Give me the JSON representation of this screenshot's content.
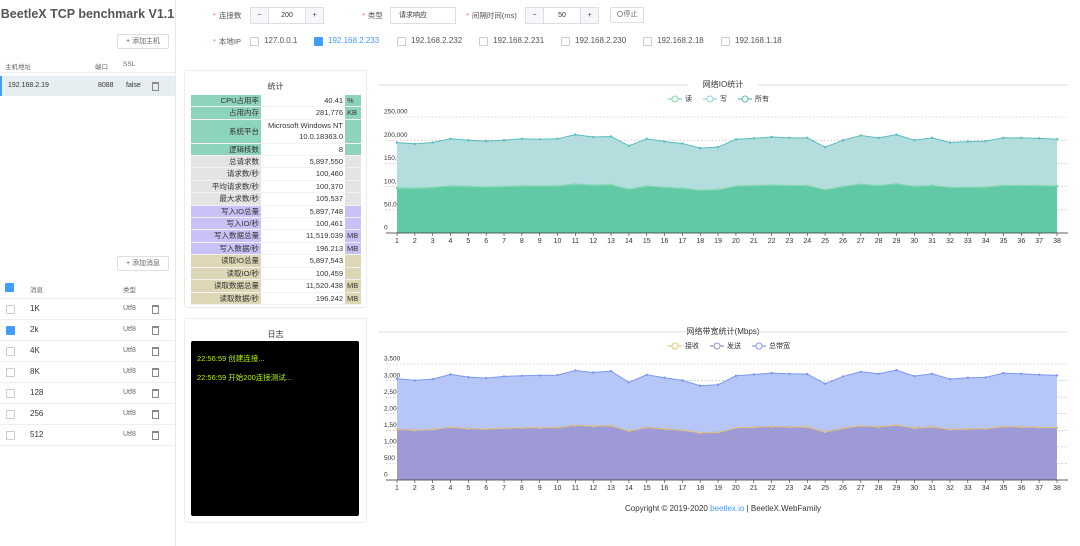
{
  "sidebar": {
    "title": "BeetleX TCP benchmark V1.1",
    "add_host": "+ 添加主机",
    "host_headers": [
      "主机地址",
      "端口",
      "SSL"
    ],
    "hosts": [
      [
        "192.168.2.19",
        "8088",
        "false"
      ]
    ],
    "add_message": "+ 添加消息",
    "message_headers": [
      "消息",
      "类型"
    ],
    "messages": [
      {
        "name": "1K",
        "type": "Utf8",
        "checked": false
      },
      {
        "name": "2k",
        "type": "Utf8",
        "checked": true
      },
      {
        "name": "4K",
        "type": "Utf8",
        "checked": false
      },
      {
        "name": "8K",
        "type": "Utf8",
        "checked": false
      },
      {
        "name": "128",
        "type": "Utf8",
        "checked": false
      },
      {
        "name": "256",
        "type": "Utf8",
        "checked": false
      },
      {
        "name": "512",
        "type": "Utf8",
        "checked": false
      }
    ]
  },
  "form": {
    "connections_label": "连接数",
    "connections": "200",
    "type_label": "类型",
    "type": "请求响应",
    "interval_label": "间隔时间(ms)",
    "interval": "50",
    "stop": "停止",
    "minus": "−",
    "plus": "+",
    "ip_label": "本地IP",
    "ips": [
      {
        "ip": "127.0.0.1",
        "checked": false
      },
      {
        "ip": "192.168.2.233",
        "checked": true
      },
      {
        "ip": "192.168.2.232",
        "checked": false
      },
      {
        "ip": "192.168.2.231",
        "checked": false
      },
      {
        "ip": "192.168.2.230",
        "checked": false
      },
      {
        "ip": "192.168.2.18",
        "checked": false
      },
      {
        "ip": "192.168.1.18",
        "checked": false
      }
    ]
  },
  "stats": {
    "title": "统计",
    "rows": [
      {
        "label": "CPU占用率",
        "value": "40.41",
        "unit": "%",
        "color": "#8ed4ba"
      },
      {
        "label": "占用内存",
        "value": "281,776",
        "unit": "KB",
        "color": "#8ed4ba"
      },
      {
        "label": "系统平台",
        "value": "Microsoft Windows NT 10.0.18363.0",
        "color": "#8ed4ba"
      },
      {
        "label": "逻辑核数",
        "value": "8",
        "color": "#8ed4ba"
      },
      {
        "label": "总请求数",
        "value": "5,897,550",
        "color": "#e4e4e4"
      },
      {
        "label": "请求数/秒",
        "value": "100,460",
        "color": "#e4e4e4"
      },
      {
        "label": "平均请求数/秒",
        "value": "100,370",
        "color": "#e4e4e4"
      },
      {
        "label": "最大求数/秒",
        "value": "105,537",
        "color": "#e4e4e4"
      },
      {
        "label": "写入IO总量",
        "value": "5,897,748",
        "color": "#c8c2f6"
      },
      {
        "label": "写入IO/秒",
        "value": "100,461",
        "color": "#c8c2f6"
      },
      {
        "label": "写入数据总量",
        "value": "11,519.039",
        "unit": "MB",
        "color": "#c8c2f6"
      },
      {
        "label": "写入数据/秒",
        "value": "196.213",
        "unit": "MB",
        "color": "#c8c2f6"
      },
      {
        "label": "读取IO总量",
        "value": "5,897,543",
        "color": "#ddd7b6"
      },
      {
        "label": "读取IO/秒",
        "value": "100,459",
        "color": "#ddd7b6"
      },
      {
        "label": "读取数据总量",
        "value": "11,520.438",
        "unit": "MB",
        "color": "#ddd7b6"
      },
      {
        "label": "读取数据/秒",
        "value": "196.242",
        "unit": "MB",
        "color": "#ddd7b6"
      }
    ]
  },
  "log": {
    "title": "日志",
    "lines": [
      "22:56:59 创建连接...",
      "22:56:59 开始200连接测试..."
    ]
  },
  "footer": {
    "text": "Copyright © 2019-2020 ",
    "link": "beetlex.io",
    "rest": " | BeetleX.WebFamily"
  },
  "chart_data": [
    {
      "type": "area",
      "title": "网络IO统计",
      "categories": [
        "1",
        "2",
        "3",
        "4",
        "5",
        "6",
        "7",
        "8",
        "9",
        "10",
        "11",
        "12",
        "13",
        "14",
        "15",
        "16",
        "17",
        "18",
        "19",
        "20",
        "21",
        "22",
        "23",
        "24",
        "25",
        "26",
        "27",
        "28",
        "29",
        "30",
        "31",
        "32",
        "33",
        "34",
        "35",
        "36",
        "37",
        "38"
      ],
      "ylim": [
        0,
        250000
      ],
      "yticks": [
        0,
        {
          "value": 50000,
          "label": "50,000"
        },
        {
          "value": 100000,
          "label": "100,000"
        },
        {
          "value": 150000,
          "label": "150,000"
        },
        {
          "value": 200000,
          "label": "200,000"
        },
        {
          "value": 250000,
          "label": "250,000"
        }
      ],
      "grid": true,
      "series": [
        {
          "name": "读",
          "color": "#7fd8a8",
          "area_color": "#62c9a7",
          "values": [
            97000,
            96000,
            98000,
            101000,
            100000,
            99000,
            100000,
            101000,
            101000,
            101000,
            105000,
            103000,
            104000,
            94000,
            101000,
            98000,
            96000,
            92000,
            93000,
            101000,
            102000,
            103000,
            102000,
            102000,
            93000,
            100000,
            105000,
            102000,
            106000,
            100000,
            102000,
            98000,
            98000,
            99000,
            102000,
            102000,
            102000,
            101000
          ]
        },
        {
          "name": "写",
          "color": "#8fd3e0",
          "area_color": "#6ccdb0",
          "values": [
            97500,
            96500,
            97500,
            101500,
            100500,
            98500,
            100500,
            101500,
            100500,
            101500,
            106000,
            103500,
            103500,
            94500,
            101500,
            98500,
            96500,
            91500,
            93500,
            100500,
            101500,
            103500,
            102500,
            102500,
            92500,
            100500,
            104500,
            102500,
            105500,
            100500,
            102500,
            97500,
            98500,
            98500,
            102500,
            102500,
            101500,
            100500
          ]
        },
        {
          "name": "所有",
          "color": "#5bbcbf",
          "area_color": "#b3dedd",
          "values": [
            195000,
            192000,
            195000,
            203000,
            200000,
            198000,
            200000,
            203000,
            202000,
            203000,
            212000,
            207000,
            208000,
            188000,
            203000,
            197000,
            193000,
            183000,
            185000,
            202000,
            204000,
            207000,
            205000,
            205000,
            185000,
            200000,
            210000,
            205000,
            212000,
            200000,
            205000,
            195000,
            197000,
            198000,
            205000,
            205000,
            204000,
            202000
          ]
        }
      ]
    },
    {
      "type": "area",
      "title": "网络带宽统计(Mbps)",
      "categories": [
        "1",
        "2",
        "3",
        "4",
        "5",
        "6",
        "7",
        "8",
        "9",
        "10",
        "11",
        "12",
        "13",
        "14",
        "15",
        "16",
        "17",
        "18",
        "19",
        "20",
        "21",
        "22",
        "23",
        "24",
        "25",
        "26",
        "27",
        "28",
        "29",
        "30",
        "31",
        "32",
        "33",
        "34",
        "35",
        "36",
        "37",
        "38"
      ],
      "ylim": [
        0,
        3500
      ],
      "yticks": [
        0,
        500,
        {
          "value": 1000,
          "label": "1,000"
        },
        {
          "value": 1500,
          "label": "1,500"
        },
        {
          "value": 2000,
          "label": "2,000"
        },
        {
          "value": 2500,
          "label": "2,500"
        },
        {
          "value": 3000,
          "label": "3,000"
        },
        {
          "value": 3500,
          "label": "3,500"
        }
      ],
      "grid": true,
      "series": [
        {
          "name": "接收",
          "color": "#e3c77c",
          "area_color": "#9e9ad5",
          "values": [
            1525,
            1500,
            1525,
            1590,
            1550,
            1540,
            1560,
            1575,
            1575,
            1580,
            1650,
            1625,
            1640,
            1475,
            1585,
            1540,
            1500,
            1425,
            1435,
            1575,
            1590,
            1610,
            1600,
            1600,
            1450,
            1560,
            1635,
            1600,
            1660,
            1565,
            1600,
            1525,
            1540,
            1550,
            1610,
            1600,
            1590,
            1580
          ]
        },
        {
          "name": "发送",
          "color": "#9c8fd4",
          "area_color": "#a29cd8",
          "values": [
            1530,
            1505,
            1520,
            1595,
            1555,
            1535,
            1565,
            1570,
            1580,
            1585,
            1655,
            1620,
            1645,
            1470,
            1590,
            1545,
            1505,
            1420,
            1440,
            1570,
            1595,
            1615,
            1605,
            1595,
            1455,
            1565,
            1630,
            1605,
            1655,
            1570,
            1605,
            1520,
            1545,
            1545,
            1615,
            1605,
            1585,
            1575
          ]
        },
        {
          "name": "总带宽",
          "color": "#7c98ee",
          "area_color": "#b6c6f6",
          "values": [
            3055,
            3005,
            3045,
            3185,
            3105,
            3075,
            3125,
            3145,
            3155,
            3165,
            3305,
            3245,
            3285,
            2945,
            3175,
            3085,
            3005,
            2845,
            2875,
            3145,
            3185,
            3225,
            3205,
            3195,
            2905,
            3125,
            3265,
            3205,
            3315,
            3135,
            3205,
            3045,
            3085,
            3095,
            3225,
            3205,
            3175,
            3155
          ]
        }
      ]
    }
  ]
}
